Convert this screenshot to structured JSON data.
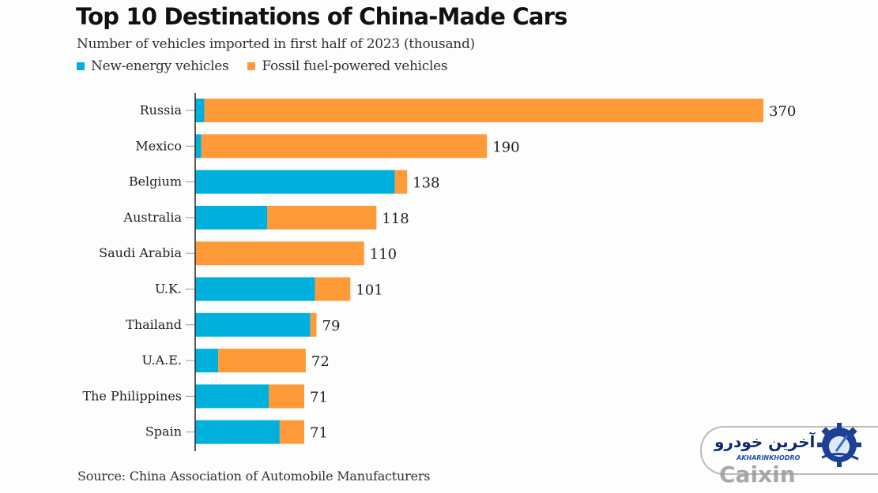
{
  "chart_data": {
    "type": "bar",
    "orientation": "horizontal",
    "stacked": true,
    "title": "Top 10 Destinations of China-Made Cars",
    "subtitle": "Number of vehicles imported in first half of 2023 (thousand)",
    "xlabel": "",
    "ylabel": "",
    "xlim": [
      0,
      370
    ],
    "grid": false,
    "legend_position": "top-left",
    "categories": [
      "Russia",
      "Mexico",
      "Belgium",
      "Australia",
      "Saudi Arabia",
      "U.K.",
      "Thailand",
      "U.A.E.",
      "The Philippines",
      "Spain"
    ],
    "totals": [
      370,
      190,
      138,
      118,
      110,
      101,
      79,
      72,
      71,
      71
    ],
    "series": [
      {
        "name": "New-energy vehicles",
        "color": "#00b0dc",
        "values": [
          6,
          4,
          130,
          47,
          0,
          78,
          75,
          15,
          48,
          55
        ]
      },
      {
        "name": "Fossil fuel-powered vehicles",
        "color": "#ff9a38",
        "values": [
          364,
          186,
          8,
          71,
          110,
          23,
          4,
          57,
          23,
          16
        ]
      }
    ],
    "total_labels": [
      "370",
      "190",
      "138",
      "118",
      "110",
      "101",
      "79",
      "72",
      "71",
      "71"
    ],
    "source": "Source: China Association of Automobile Manufacturers"
  },
  "legend": {
    "items": [
      {
        "label": "New-energy vehicles",
        "color": "#00b0dc"
      },
      {
        "label": "Fossil fuel-powered vehicles",
        "color": "#ff9a38"
      }
    ]
  },
  "watermark": {
    "persian_text": "آخرین خودرو",
    "english_text": "AKHARINKHODRO",
    "caixin_text": "Caixin"
  }
}
